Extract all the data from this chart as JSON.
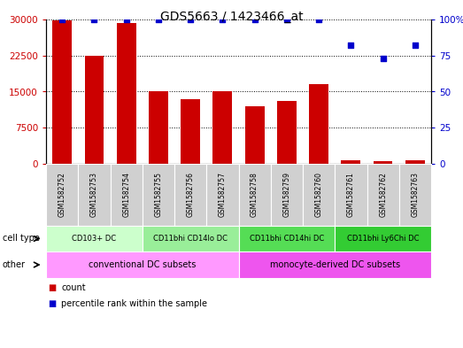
{
  "title": "GDS5663 / 1423466_at",
  "samples": [
    "GSM1582752",
    "GSM1582753",
    "GSM1582754",
    "GSM1582755",
    "GSM1582756",
    "GSM1582757",
    "GSM1582758",
    "GSM1582759",
    "GSM1582760",
    "GSM1582761",
    "GSM1582762",
    "GSM1582763"
  ],
  "counts": [
    29800,
    22500,
    29200,
    15000,
    13500,
    15000,
    12000,
    13000,
    16500,
    700,
    600,
    700
  ],
  "percentiles": [
    100,
    100,
    100,
    100,
    100,
    100,
    100,
    100,
    100,
    82,
    73,
    82
  ],
  "bar_color": "#cc0000",
  "dot_color": "#0000cc",
  "ylim_left": [
    0,
    30000
  ],
  "ylim_right": [
    0,
    100
  ],
  "yticks_left": [
    0,
    7500,
    15000,
    22500,
    30000
  ],
  "yticks_right": [
    0,
    25,
    50,
    75,
    100
  ],
  "ytick_labels_right": [
    "0",
    "25",
    "50",
    "75",
    "100%"
  ],
  "cell_types": [
    {
      "label": "CD103+ DC",
      "start": 0,
      "end": 3,
      "color": "#ccffcc"
    },
    {
      "label": "CD11bhi CD14lo DC",
      "start": 3,
      "end": 6,
      "color": "#99ee99"
    },
    {
      "label": "CD11bhi CD14hi DC",
      "start": 6,
      "end": 9,
      "color": "#55dd55"
    },
    {
      "label": "CD11bhi Ly6Chi DC",
      "start": 9,
      "end": 12,
      "color": "#33cc33"
    }
  ],
  "other_groups": [
    {
      "label": "conventional DC subsets",
      "start": 0,
      "end": 6,
      "color": "#ff99ff"
    },
    {
      "label": "monocyte-derived DC subsets",
      "start": 6,
      "end": 12,
      "color": "#ee55ee"
    }
  ],
  "cell_type_label": "cell type",
  "other_label": "other",
  "legend_count_label": "count",
  "legend_pct_label": "percentile rank within the sample"
}
